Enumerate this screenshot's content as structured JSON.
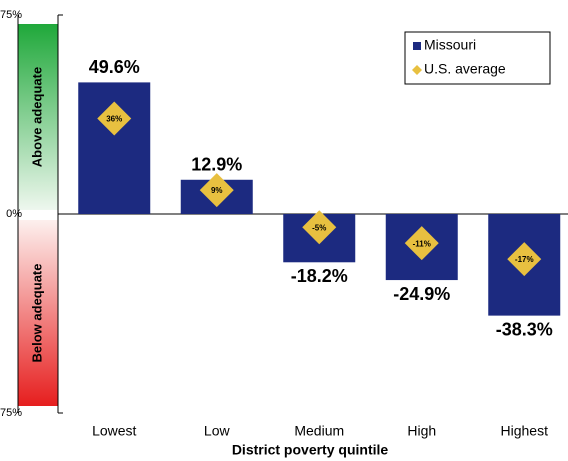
{
  "chart_data": {
    "type": "bar",
    "x_label": "District poverty quintile",
    "categories": [
      "Lowest",
      "Low",
      "Medium",
      "High",
      "Highest"
    ],
    "series": [
      {
        "name": "Missouri",
        "color": "#1c2a80",
        "values": [
          49.6,
          12.9,
          -18.2,
          -24.9,
          -38.3
        ],
        "value_labels": [
          "49.6%",
          "12.9%",
          "-18.2%",
          "-24.9%",
          "-38.3%"
        ]
      },
      {
        "name": "U.S. average",
        "color": "#e8c040",
        "values": [
          36,
          9,
          -5,
          -11,
          -17
        ],
        "value_labels": [
          "36%",
          "9%",
          "-5%",
          "-11%",
          "-17%"
        ]
      }
    ],
    "ylim": [
      -75,
      75
    ],
    "yticks": [
      {
        "value": -75,
        "label": "-75%"
      },
      {
        "value": 0,
        "label": "0%"
      },
      {
        "value": 75,
        "label": "75%"
      }
    ],
    "above_label": "Above adequate",
    "below_label": "Below adequate",
    "legend": "top-right"
  }
}
